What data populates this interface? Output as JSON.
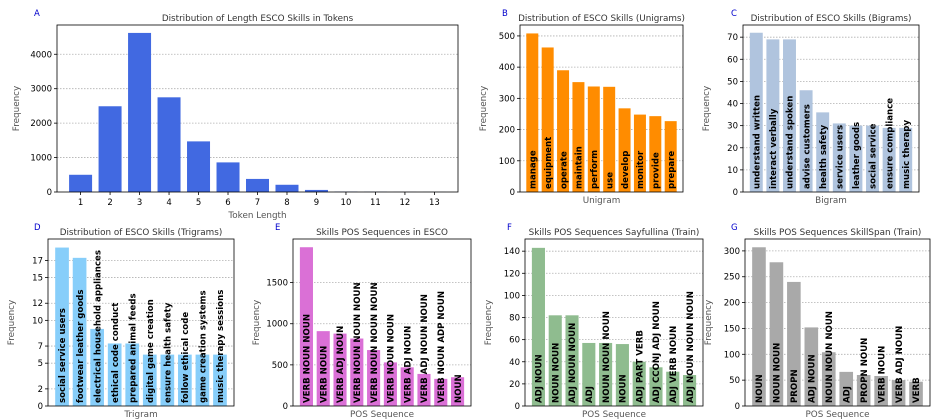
{
  "chart_data": [
    {
      "panel": "A",
      "type": "bar",
      "title": "Distribution of Length ESCO Skills in Tokens",
      "xlabel": "Token Length",
      "ylabel": "Frequency",
      "color": "#4169e1",
      "categories": [
        "1",
        "2",
        "3",
        "4",
        "5",
        "6",
        "7",
        "8",
        "9",
        "10",
        "11",
        "12",
        "13"
      ],
      "values": [
        500,
        2490,
        4620,
        2750,
        1470,
        860,
        380,
        210,
        60,
        10,
        5,
        3,
        2
      ],
      "yticks": [
        0,
        1000,
        2000,
        3000,
        4000
      ],
      "ylim": [
        0,
        4850
      ],
      "grid": "dotted"
    },
    {
      "panel": "B",
      "type": "bar",
      "title": "Distribution of ESCO Skills (Unigrams)",
      "xlabel": "Unigram",
      "ylabel": "Frequency",
      "color": "#ff8c00",
      "categories": [
        "manage",
        "equipment",
        "operate",
        "maintain",
        "perform",
        "use",
        "develop",
        "monitor",
        "provide",
        "prepare"
      ],
      "values": [
        508,
        463,
        390,
        352,
        338,
        337,
        268,
        248,
        243,
        227
      ],
      "yticks": [
        0,
        100,
        200,
        300,
        400,
        500
      ],
      "ylim": [
        0,
        535
      ],
      "grid": "dotted"
    },
    {
      "panel": "C",
      "type": "bar",
      "title": "Distribution of ESCO Skills (Bigrams)",
      "xlabel": "Bigram",
      "ylabel": "Frequency",
      "color": "#b0c4de",
      "categories": [
        "understand written",
        "interact verbally",
        "understand spoken",
        "advise customers",
        "health safety",
        "service users",
        "leather goods",
        "social service",
        "ensure compliance",
        "music therapy"
      ],
      "values": [
        72,
        69,
        69,
        46,
        36,
        31,
        30,
        30,
        29,
        29
      ],
      "yticks": [
        0,
        10,
        20,
        30,
        40,
        50,
        60,
        70
      ],
      "ylim": [
        0,
        75.5
      ],
      "grid": "dotted"
    },
    {
      "panel": "D",
      "type": "bar",
      "title": "Distribution of ESCO Skills (Trigrams)",
      "xlabel": "Trigram",
      "ylabel": "Frequency",
      "color": "#87cefa",
      "categories": [
        "social service users",
        "footwear leather goods",
        "electrical household appliances",
        "ethical code conduct",
        "prepared animal feeds",
        "digital game creation",
        "ensure health safety",
        "follow ethical code",
        "game creation systems",
        "music therapy sessions"
      ],
      "values": [
        18.5,
        17.3,
        9,
        7.3,
        7.3,
        6,
        6,
        6,
        6,
        6
      ],
      "yticks": [
        0,
        2,
        5,
        7,
        10,
        12,
        15,
        17
      ],
      "ylim": [
        0,
        19.5
      ],
      "grid": "dotted"
    },
    {
      "panel": "E",
      "type": "bar",
      "title": "Skills POS Sequences in ESCO",
      "xlabel": "POS Sequence",
      "ylabel": "Frequency",
      "color": "#da70d6",
      "categories": [
        "VERB NOUN NOUN",
        "VERB NOUN",
        "VERB ADJ NOUN",
        "VERB NOUN NOUN NOUN",
        "VERB NOUN NOUN NOUN",
        "VERB NOUN NOUN",
        "VERB ADJ NOUN",
        "VERB ADJ NOUN NOUN",
        "VERB NOUN ADP NOUN",
        "NOUN"
      ],
      "values": [
        1930,
        910,
        880,
        820,
        680,
        530,
        470,
        390,
        330,
        350
      ],
      "yticks": [
        0,
        500,
        1000,
        1500
      ],
      "ylim": [
        0,
        2030
      ],
      "grid": "dotted"
    },
    {
      "panel": "F",
      "type": "bar",
      "title": "Skills POS Sequences Sayfullina (Train)",
      "xlabel": "POS Sequence",
      "ylabel": "Frequency",
      "color": "#8fbc8f",
      "categories": [
        "ADJ NOUN",
        "NOUN NOUN",
        "ADJ NOUN NOUN",
        "ADJ",
        "NOUN NOUN NOUN",
        "NOUN",
        "ADJ PART VERB",
        "ADJ CCONJ ADJ NOUN",
        "ADJ VERB NOUN",
        "ADJ NOUN NOUN NOUN"
      ],
      "values": [
        143,
        82,
        82,
        57,
        57,
        56,
        40,
        35,
        31,
        28
      ],
      "yticks": [
        0,
        20,
        40,
        60,
        80,
        100,
        120,
        140
      ],
      "ylim": [
        0,
        151
      ],
      "grid": "dotted"
    },
    {
      "panel": "G",
      "type": "bar",
      "title": "Skills POS Sequences SkillSpan (Train)",
      "xlabel": "POS Sequence",
      "ylabel": "Frequency",
      "color": "#a9a9a9",
      "categories": [
        "NOUN",
        "NOUN NOUN",
        "PROPN",
        "ADJ NOUN",
        "NOUN NOUN NOUN",
        "ADJ",
        "PROPN NOUN",
        "VERB NOUN",
        "VERB ADJ NOUN",
        "VERB"
      ],
      "values": [
        307,
        278,
        240,
        152,
        104,
        66,
        60,
        58,
        50,
        47
      ],
      "yticks": [
        0,
        50,
        100,
        150,
        200,
        250,
        300
      ],
      "ylim": [
        0,
        323
      ],
      "grid": "dotted"
    }
  ]
}
